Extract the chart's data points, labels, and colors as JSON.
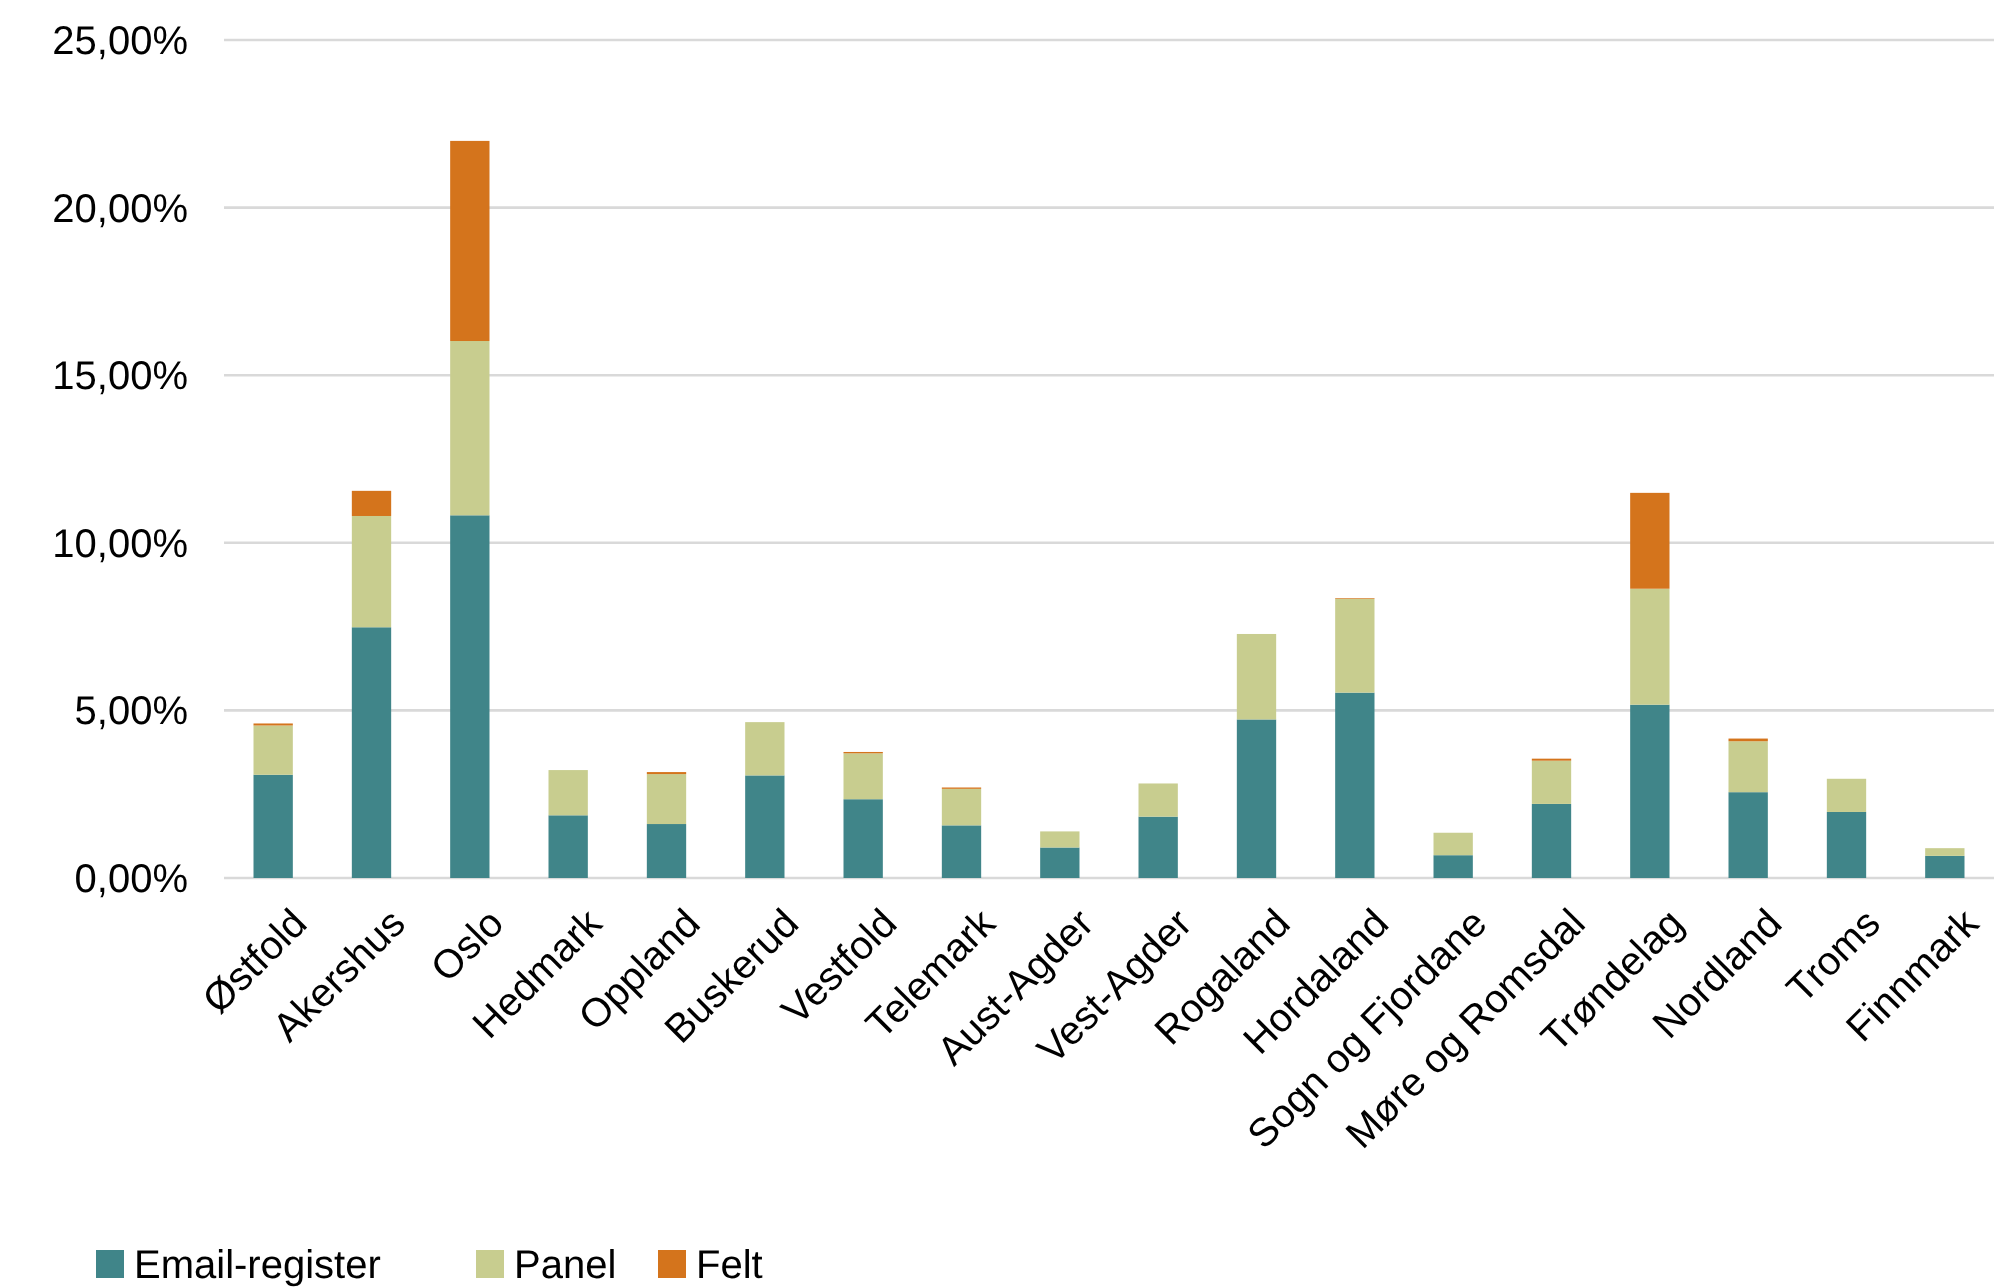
{
  "chart_data": {
    "type": "bar",
    "stacked": true,
    "categories": [
      "Østfold",
      "Akershus",
      "Oslo",
      "Hedmark",
      "Oppland",
      "Buskerud",
      "Vestfold",
      "Telemark",
      "Aust-Agder",
      "Vest-Agder",
      "Rogaland",
      "Hordaland",
      "Sogn og Fjordane",
      "Møre og Romsdal",
      "Trøndelag",
      "Nordland",
      "Troms",
      "Finnmark"
    ],
    "series": [
      {
        "name": "Email-register",
        "color": "#408589",
        "values": [
          3.08,
          7.48,
          10.82,
          1.87,
          1.61,
          3.06,
          2.35,
          1.57,
          0.91,
          1.83,
          4.73,
          5.53,
          0.68,
          2.21,
          5.17,
          2.56,
          1.97,
          0.66
        ]
      },
      {
        "name": "Panel",
        "color": "#c8cd8f",
        "values": [
          1.47,
          3.32,
          5.2,
          1.35,
          1.49,
          1.59,
          1.37,
          1.09,
          0.48,
          0.99,
          2.55,
          2.8,
          0.67,
          1.29,
          3.46,
          1.52,
          0.99,
          0.23
        ]
      },
      {
        "name": "Felt",
        "color": "#d4741c",
        "values": [
          0.06,
          0.75,
          5.97,
          0,
          0.06,
          0,
          0.04,
          0.04,
          0,
          0,
          0,
          0.02,
          0,
          0.06,
          2.86,
          0.08,
          0,
          0
        ]
      }
    ],
    "ylim": [
      0,
      25
    ],
    "yticks": [
      {
        "value": 0,
        "label": "0,00%"
      },
      {
        "value": 5,
        "label": "5,00%"
      },
      {
        "value": 10,
        "label": "10,00%"
      },
      {
        "value": 15,
        "label": "15,00%"
      },
      {
        "value": 20,
        "label": "20,00%"
      },
      {
        "value": 25,
        "label": "25,00%"
      }
    ],
    "grid": "y",
    "legend": "bottom left"
  }
}
